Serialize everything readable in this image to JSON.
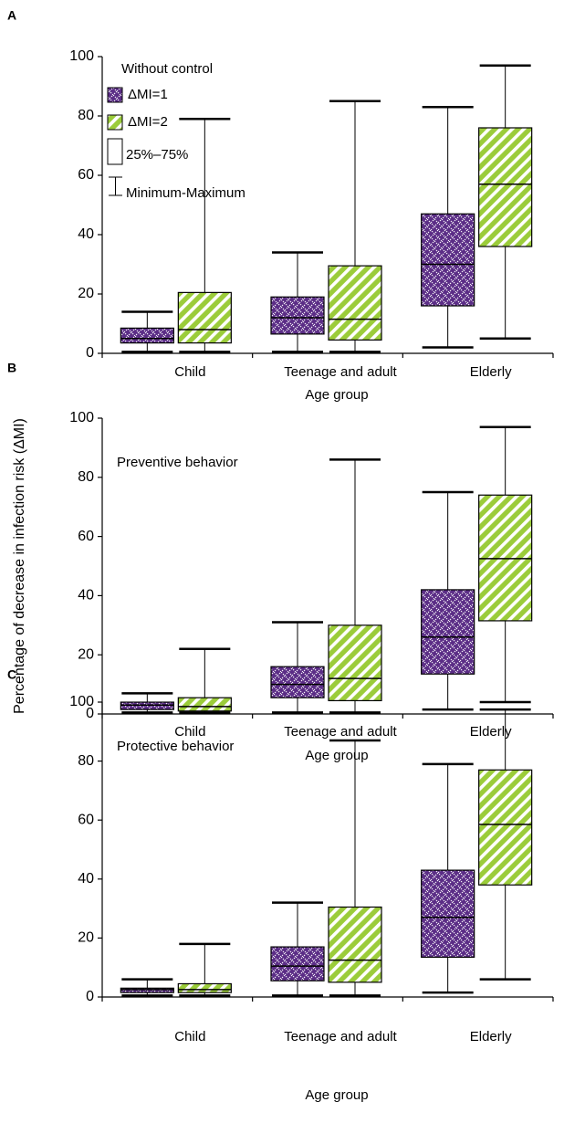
{
  "chart_data": [
    {
      "type": "box",
      "panel": "A",
      "legend_title": "Without control",
      "legend_notes": [
        "25%–75%",
        "Minimum-Maximum"
      ],
      "categories": [
        "Child",
        "Teenage and adult",
        "Elderly"
      ],
      "xlabel": "Age group",
      "ylim": [
        0,
        100
      ],
      "yticks": [
        0,
        20,
        40,
        60,
        80,
        100
      ],
      "series": [
        {
          "name": "ΔMI=1",
          "color": "#5b2d86",
          "hatch": "diamond",
          "values": [
            {
              "min": 0.5,
              "q1": 3.5,
              "median": 5,
              "q3": 8.5,
              "max": 14
            },
            {
              "min": 0.5,
              "q1": 6.5,
              "median": 12,
              "q3": 19,
              "max": 34
            },
            {
              "min": 2,
              "q1": 16,
              "median": 30,
              "q3": 47,
              "max": 83
            }
          ]
        },
        {
          "name": "ΔMI=2",
          "color": "#9bcc3a",
          "hatch": "diagonal",
          "values": [
            {
              "min": 0.5,
              "q1": 3.5,
              "median": 8,
              "q3": 20.5,
              "max": 79
            },
            {
              "min": 0.5,
              "q1": 4.5,
              "median": 11.5,
              "q3": 29.5,
              "max": 85
            },
            {
              "min": 5,
              "q1": 36,
              "median": 57,
              "q3": 76,
              "max": 97
            }
          ]
        }
      ]
    },
    {
      "type": "box",
      "panel": "B",
      "annotation": "Preventive behavior",
      "ylabel": "Percentage of decrease in infection risk (ΔMI)",
      "categories": [
        "Child",
        "Teenage and adult",
        "Elderly"
      ],
      "xlabel": "Age group",
      "ylim": [
        0,
        100
      ],
      "yticks": [
        0,
        20,
        40,
        60,
        80,
        100
      ],
      "series": [
        {
          "color": "#5b2d86",
          "hatch": "diamond",
          "values": [
            {
              "min": 0.5,
              "q1": 1.5,
              "median": 3,
              "q3": 4,
              "max": 7
            },
            {
              "min": 0.5,
              "q1": 5.5,
              "median": 10,
              "q3": 16,
              "max": 31
            },
            {
              "min": 1.5,
              "q1": 13.5,
              "median": 26,
              "q3": 42,
              "max": 75
            }
          ]
        },
        {
          "color": "#9bcc3a",
          "hatch": "diagonal",
          "values": [
            {
              "min": 0.5,
              "q1": 1,
              "median": 2.5,
              "q3": 5.5,
              "max": 22
            },
            {
              "min": 0.5,
              "q1": 4.5,
              "median": 12,
              "q3": 30,
              "max": 86
            },
            {
              "min": 4,
              "q1": 31.5,
              "median": 52.5,
              "q3": 74,
              "max": 97
            }
          ]
        }
      ]
    },
    {
      "type": "box",
      "panel": "C",
      "annotation": "Protective behavior",
      "categories": [
        "Child",
        "Teenage and adult",
        "Elderly"
      ],
      "xlabel": "Age group",
      "ylim": [
        0,
        100
      ],
      "yticks": [
        0,
        20,
        40,
        60,
        80,
        100
      ],
      "series": [
        {
          "color": "#5b2d86",
          "hatch": "diamond",
          "values": [
            {
              "min": 0.5,
              "q1": 1.5,
              "median": 2.5,
              "q3": 3,
              "max": 6
            },
            {
              "min": 0.5,
              "q1": 5.5,
              "median": 10.5,
              "q3": 17,
              "max": 32
            },
            {
              "min": 1.5,
              "q1": 13.5,
              "median": 27,
              "q3": 43,
              "max": 79
            }
          ]
        },
        {
          "color": "#9bcc3a",
          "hatch": "diagonal",
          "values": [
            {
              "min": 0.5,
              "q1": 1.5,
              "median": 2.5,
              "q3": 4.5,
              "max": 18
            },
            {
              "min": 0.5,
              "q1": 5,
              "median": 12.5,
              "q3": 30.5,
              "max": 87
            },
            {
              "min": 6,
              "q1": 38,
              "median": 58.5,
              "q3": 77,
              "max": 97.5
            }
          ]
        }
      ]
    }
  ]
}
